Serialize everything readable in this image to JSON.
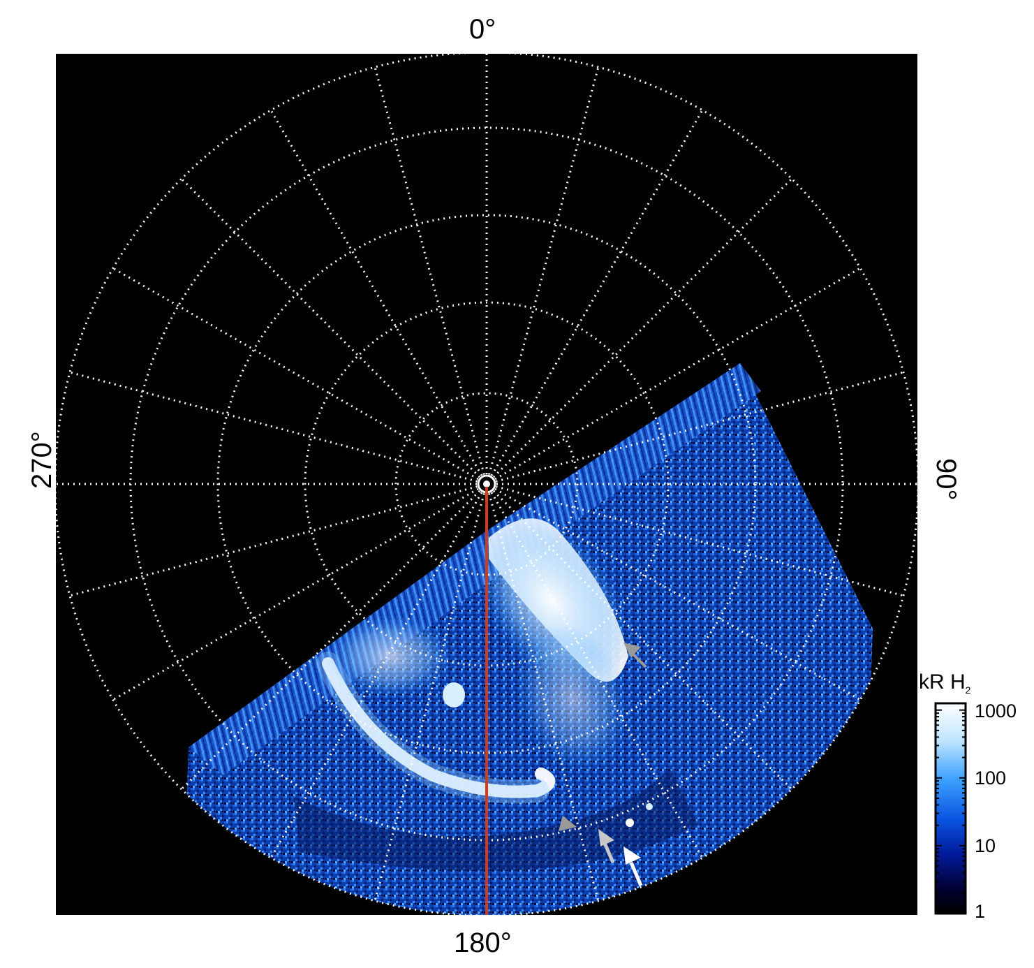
{
  "figure": {
    "labels": {
      "top": "0°",
      "bottom": "180°",
      "left": "270°",
      "right": "90°"
    },
    "colorbar": {
      "title": "kR H",
      "title_subscript": "2",
      "ticks": [
        "1000",
        "100",
        "10",
        "1"
      ],
      "colors": [
        "#ffffff",
        "#bde4ff",
        "#3ea2ff",
        "#0a55e0",
        "#001a9a",
        "#000033",
        "#000000"
      ]
    },
    "colors": {
      "background": "#000000",
      "grid": "#ffffff",
      "meridian_line": "#d03b1c",
      "arrow_gray": "#9a9a9a",
      "arrow_white": "#ffffff"
    }
  }
}
